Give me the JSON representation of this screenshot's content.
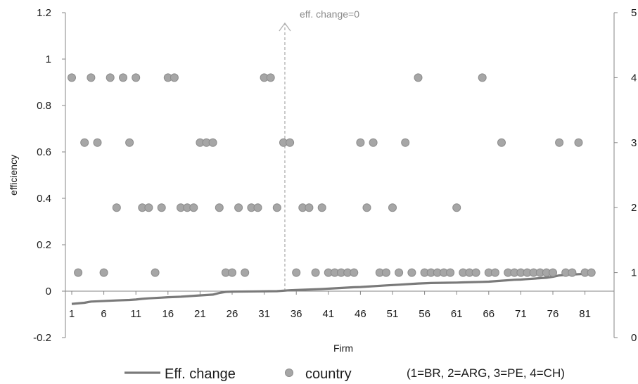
{
  "chart_data": {
    "type": "line+scatter",
    "xlabel": "Firm",
    "ylabel": "efficiency",
    "ylim": [
      -0.2,
      1.2
    ],
    "y_ticks": [
      "-0.2",
      "0",
      "0.2",
      "0.4",
      "0.6",
      "0.8",
      "1",
      "1.2"
    ],
    "y2lim": [
      0,
      5
    ],
    "y2_ticks": [
      "0",
      "1",
      "2",
      "3",
      "4",
      "5"
    ],
    "x_ticks": [
      "1",
      "6",
      "11",
      "16",
      "21",
      "26",
      "31",
      "36",
      "41",
      "46",
      "51",
      "56",
      "61",
      "66",
      "71",
      "76",
      "81"
    ],
    "annotation": {
      "text": "eff. change=0",
      "x": 34
    },
    "grid": false,
    "legend": {
      "position": "bottom",
      "line_label": "Eff. change",
      "marker_label": "country",
      "note": "(1=BR, 2=ARG, 3=PE, 4=CH)"
    },
    "colors": {
      "line": "#7a7a7a",
      "marker_fill": "#a6a6a6",
      "marker_edge": "#8c8c8c",
      "axis": "#868686",
      "arrow": "#b0b0b0"
    },
    "series": [
      {
        "name": "Eff. change",
        "type": "line",
        "axis": "left",
        "x": [
          1,
          3,
          4,
          8,
          10,
          11,
          12,
          13,
          15,
          16,
          18,
          20,
          23,
          24,
          25,
          26,
          30,
          33,
          35,
          36,
          40,
          45,
          46,
          50,
          52,
          55,
          57,
          61,
          62,
          65,
          66,
          68,
          70,
          71,
          72,
          74,
          75,
          76,
          77,
          78,
          81
        ],
        "values": [
          -0.055,
          -0.05,
          -0.045,
          -0.04,
          -0.038,
          -0.036,
          -0.033,
          -0.031,
          -0.028,
          -0.026,
          -0.024,
          -0.02,
          -0.015,
          -0.008,
          -0.003,
          -0.002,
          -0.001,
          0.0,
          0.004,
          0.005,
          0.009,
          0.017,
          0.018,
          0.025,
          0.028,
          0.033,
          0.035,
          0.037,
          0.038,
          0.04,
          0.041,
          0.045,
          0.049,
          0.05,
          0.052,
          0.056,
          0.058,
          0.062,
          0.068,
          0.07,
          0.075
        ]
      },
      {
        "name": "country",
        "type": "scatter",
        "axis": "right",
        "x": [
          1,
          2,
          3,
          4,
          5,
          6,
          7,
          8,
          9,
          10,
          11,
          12,
          13,
          14,
          15,
          16,
          17,
          18,
          19,
          20,
          21,
          22,
          23,
          24,
          25,
          26,
          27,
          28,
          29,
          30,
          31,
          32,
          33,
          34,
          35,
          36,
          37,
          38,
          39,
          40,
          41,
          42,
          43,
          44,
          45,
          46,
          47,
          48,
          49,
          50,
          51,
          52,
          53,
          54,
          55,
          56,
          57,
          58,
          59,
          60,
          61,
          62,
          63,
          64,
          65,
          66,
          67,
          68,
          69,
          70,
          71,
          72,
          73,
          74,
          75,
          76,
          77,
          78,
          79,
          80,
          81,
          82
        ],
        "values": [
          4,
          1,
          3,
          4,
          3,
          1,
          4,
          2,
          4,
          3,
          4,
          2,
          2,
          1,
          2,
          4,
          4,
          2,
          2,
          2,
          3,
          3,
          3,
          2,
          1,
          1,
          2,
          1,
          2,
          2,
          4,
          4,
          2,
          3,
          3,
          1,
          2,
          2,
          1,
          2,
          1,
          1,
          1,
          1,
          1,
          3,
          2,
          3,
          1,
          1,
          2,
          1,
          3,
          1,
          4,
          1,
          1,
          1,
          1,
          1,
          2,
          1,
          1,
          1,
          4,
          1,
          1,
          3,
          1,
          1,
          1,
          1,
          1,
          1,
          1,
          1,
          3,
          1,
          1,
          3,
          1,
          1
        ]
      }
    ]
  }
}
